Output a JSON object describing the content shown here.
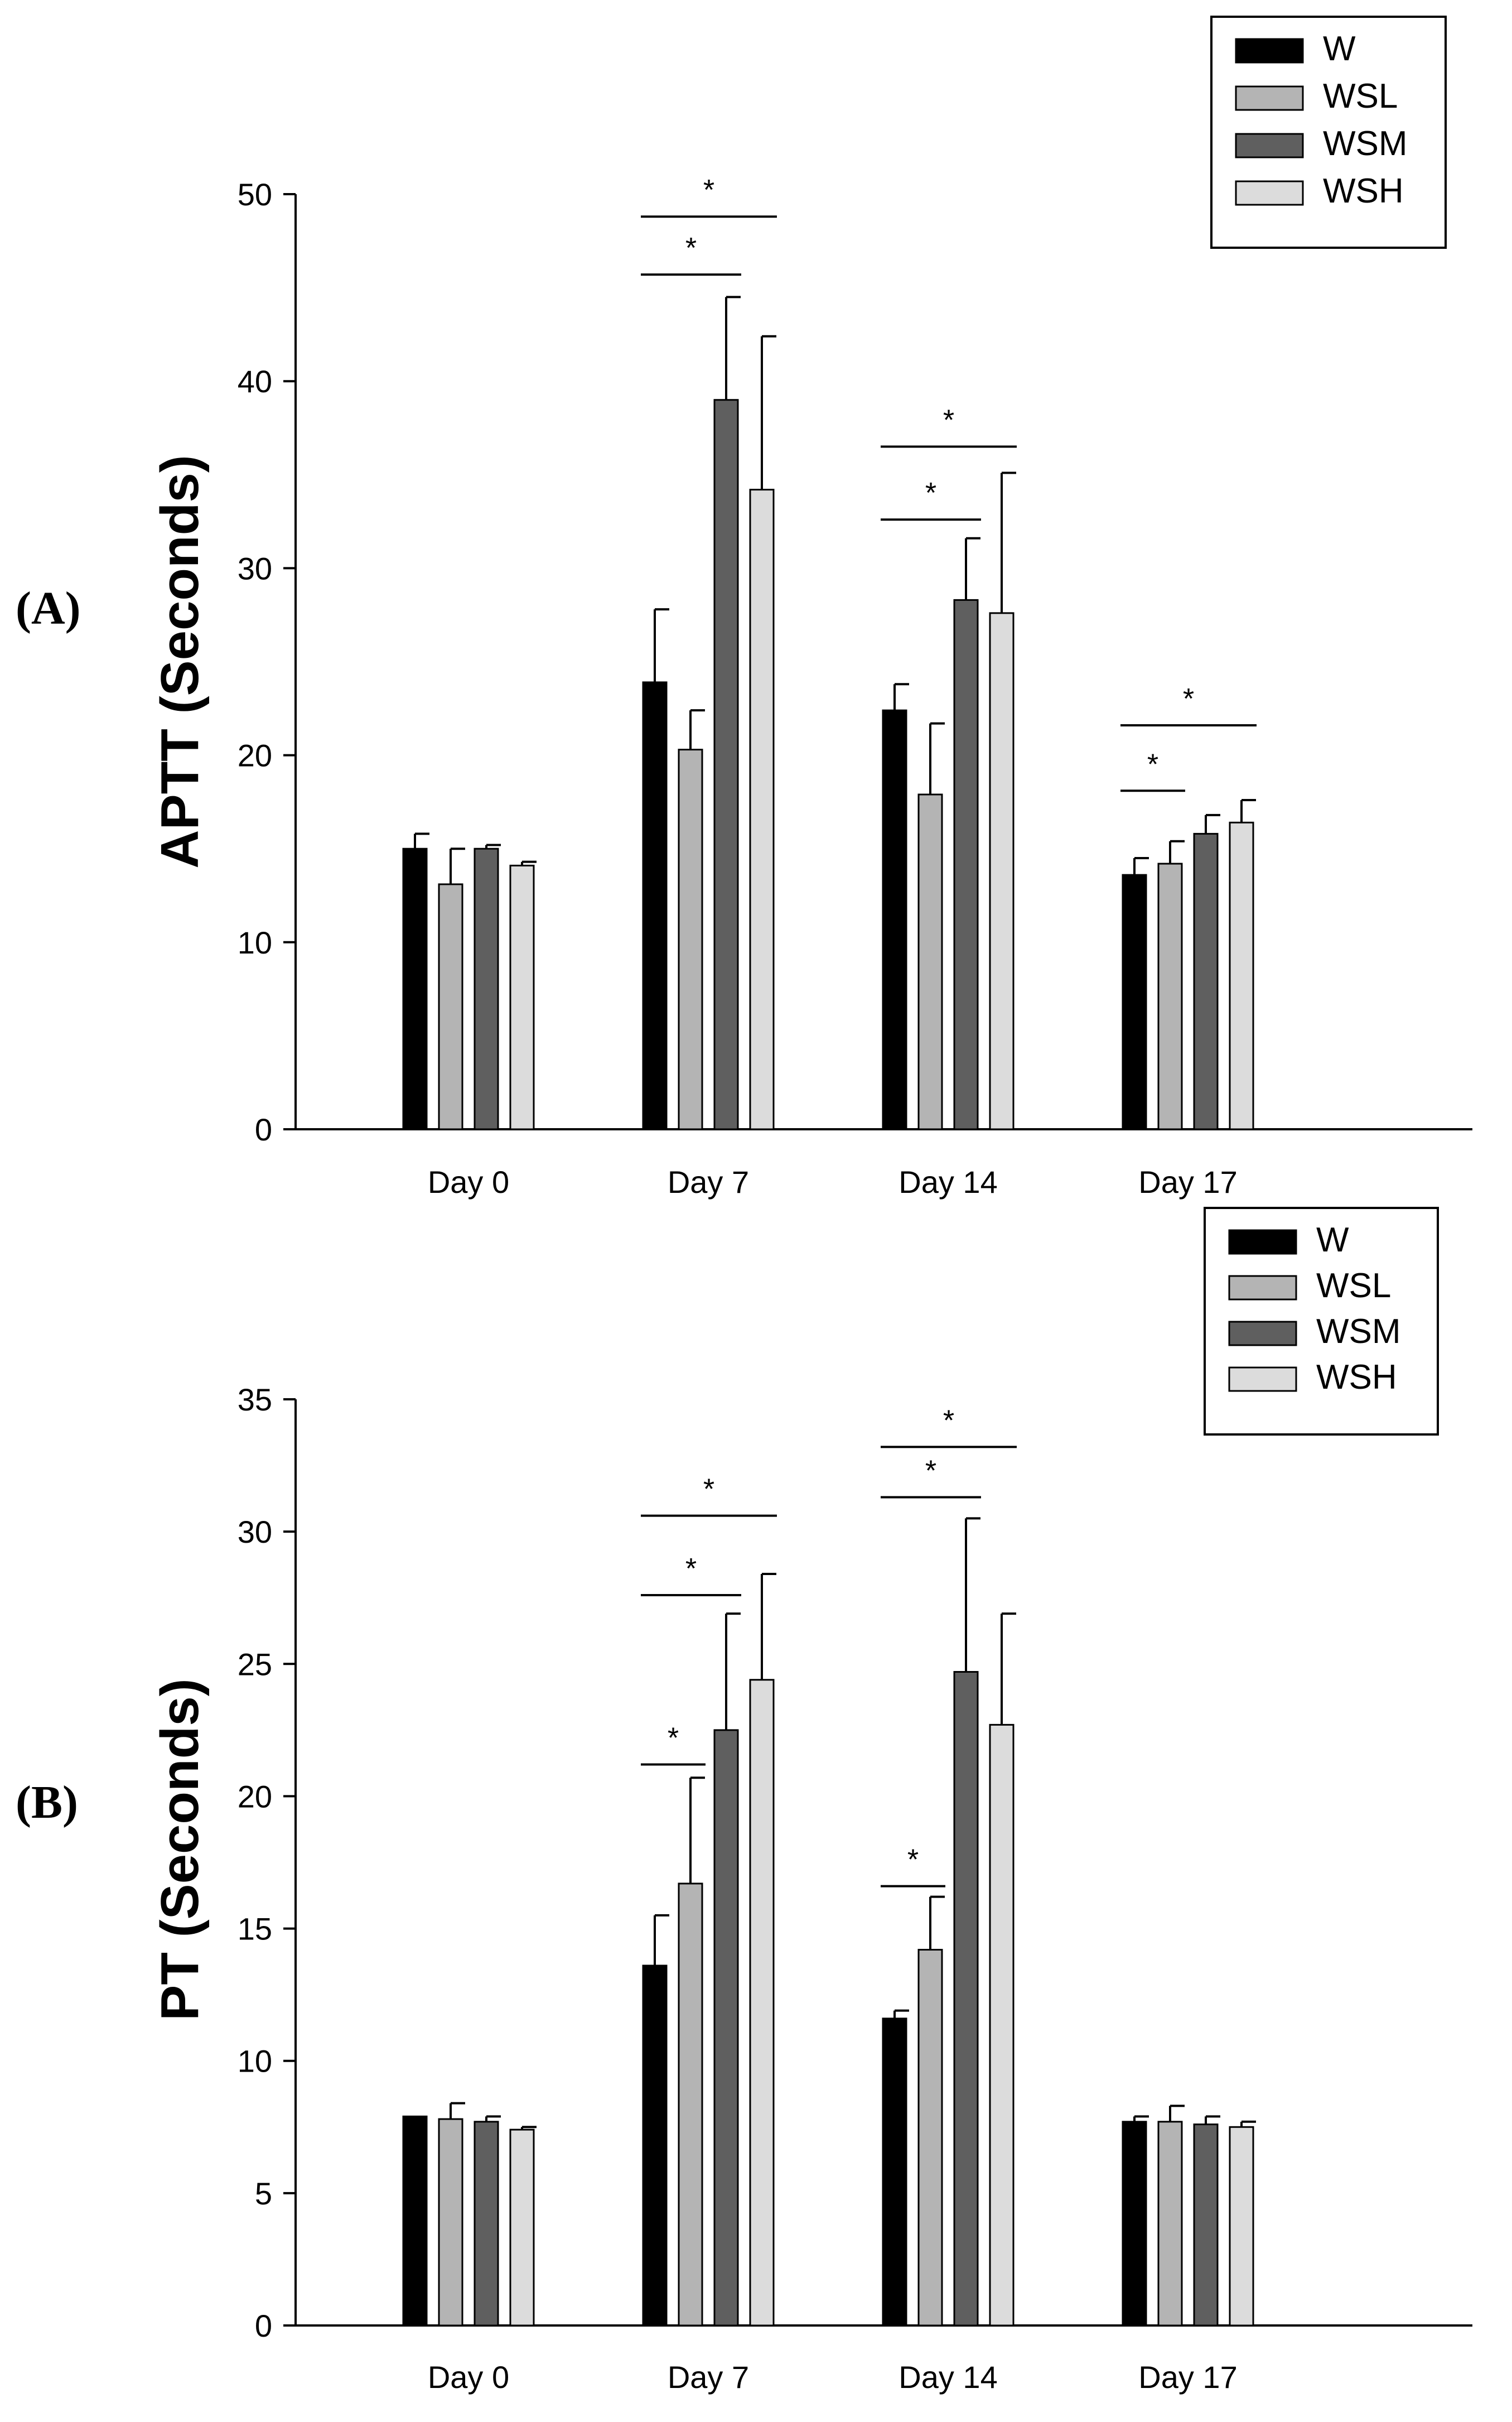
{
  "chart_data": [
    {
      "type": "bar",
      "panel_label": "(A)",
      "ylabel": "APTT (Seconds)",
      "xlabel": "",
      "ylim": [
        0,
        50
      ],
      "yticks": [
        "0",
        "10",
        "20",
        "30",
        "40",
        "50"
      ],
      "categories": [
        "Day 0",
        "Day 7",
        "Day 14",
        "Day 17"
      ],
      "legend_position": "top-right",
      "series": [
        {
          "name": "W",
          "color": "#000000",
          "values": [
            15.0,
            23.9,
            22.4,
            13.6
          ],
          "errors": [
            0.8,
            3.9,
            1.4,
            0.9
          ]
        },
        {
          "name": "WSL",
          "color": "#b4b4b4",
          "values": [
            13.1,
            20.3,
            17.9,
            14.2
          ],
          "errors": [
            1.9,
            2.1,
            3.8,
            1.2
          ]
        },
        {
          "name": "WSM",
          "color": "#5f5f5f",
          "values": [
            15.0,
            39.0,
            28.3,
            15.8
          ],
          "errors": [
            0.2,
            5.5,
            3.3,
            1.0
          ]
        },
        {
          "name": "WSH",
          "color": "#dcdcdc",
          "values": [
            14.1,
            34.2,
            27.6,
            16.4
          ],
          "errors": [
            0.2,
            8.2,
            7.5,
            1.2
          ]
        }
      ],
      "significance": [
        {
          "category": 1,
          "from": 0,
          "to": 2,
          "y": 45.7,
          "label": "*"
        },
        {
          "category": 1,
          "from": 0,
          "to": 3,
          "y": 48.8,
          "label": "*"
        },
        {
          "category": 2,
          "from": 0,
          "to": 2,
          "y": 32.6,
          "label": "*"
        },
        {
          "category": 2,
          "from": 0,
          "to": 3,
          "y": 36.5,
          "label": "*"
        },
        {
          "category": 3,
          "from": 0,
          "to": 1,
          "y": 18.1,
          "label": "*"
        },
        {
          "category": 3,
          "from": 0,
          "to": 3,
          "y": 21.6,
          "label": "*"
        }
      ]
    },
    {
      "type": "bar",
      "panel_label": "(B)",
      "ylabel": "PT (Seconds)",
      "xlabel": "",
      "ylim": [
        0,
        35
      ],
      "yticks": [
        "0",
        "5",
        "10",
        "15",
        "20",
        "25",
        "30",
        "35"
      ],
      "categories": [
        "Day 0",
        "Day 7",
        "Day 14",
        "Day 17"
      ],
      "legend_position": "top-right",
      "series": [
        {
          "name": "W",
          "color": "#000000",
          "values": [
            7.9,
            13.6,
            11.6,
            7.7
          ],
          "errors": [
            0.0,
            1.9,
            0.3,
            0.2
          ]
        },
        {
          "name": "WSL",
          "color": "#b4b4b4",
          "values": [
            7.8,
            16.7,
            14.2,
            7.7
          ],
          "errors": [
            0.6,
            4.0,
            2.0,
            0.6
          ]
        },
        {
          "name": "WSM",
          "color": "#5f5f5f",
          "values": [
            7.7,
            22.5,
            24.7,
            7.6
          ],
          "errors": [
            0.2,
            4.4,
            5.8,
            0.3
          ]
        },
        {
          "name": "WSH",
          "color": "#dcdcdc",
          "values": [
            7.4,
            24.4,
            22.7,
            7.5
          ],
          "errors": [
            0.1,
            4.0,
            4.2,
            0.2
          ]
        }
      ],
      "significance": [
        {
          "category": 1,
          "from": 0,
          "to": 1,
          "y": 21.2,
          "label": "*"
        },
        {
          "category": 1,
          "from": 0,
          "to": 2,
          "y": 27.6,
          "label": "*"
        },
        {
          "category": 1,
          "from": 0,
          "to": 3,
          "y": 30.6,
          "label": "*"
        },
        {
          "category": 2,
          "from": 0,
          "to": 1,
          "y": 16.6,
          "label": "*"
        },
        {
          "category": 2,
          "from": 0,
          "to": 2,
          "y": 31.3,
          "label": "*"
        },
        {
          "category": 2,
          "from": 0,
          "to": 3,
          "y": 33.2,
          "label": "*"
        }
      ]
    }
  ]
}
